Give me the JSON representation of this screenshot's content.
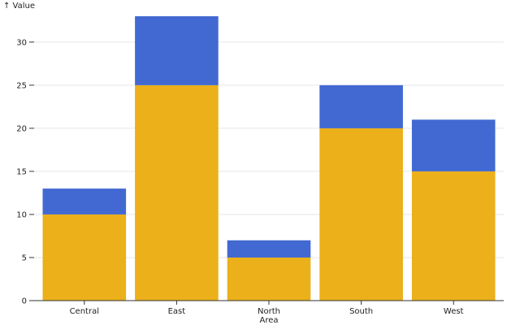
{
  "chart_data": {
    "type": "bar",
    "stacked": true,
    "categories": [
      "Central",
      "East",
      "North Area",
      "South",
      "West"
    ],
    "category_lines": [
      [
        "Central"
      ],
      [
        "East"
      ],
      [
        "North",
        "Area"
      ],
      [
        "South"
      ],
      [
        "West"
      ]
    ],
    "series": [
      {
        "values": [
          10,
          25,
          5,
          20,
          15
        ],
        "color": "#ebb01a"
      },
      {
        "values": [
          3,
          8,
          2,
          5,
          6
        ],
        "color": "#4169d1"
      }
    ],
    "ylabel": "↑ Value",
    "xlabel": "",
    "ylim": [
      0,
      33
    ],
    "yticks": [
      0,
      5,
      10,
      15,
      20,
      25,
      30
    ],
    "grid": "horizontal",
    "legend": "none"
  }
}
